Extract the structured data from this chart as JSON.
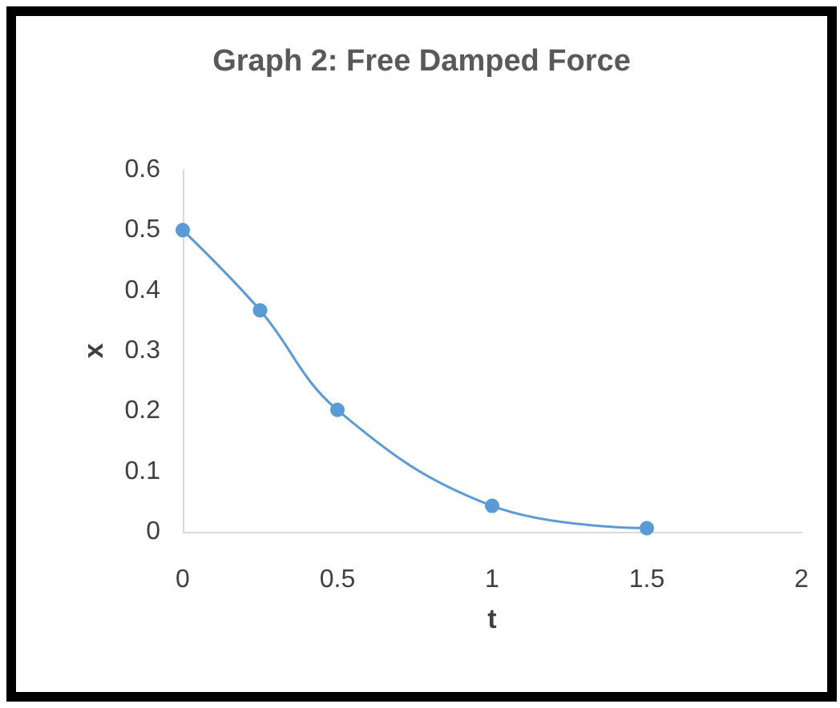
{
  "chart_data": {
    "type": "line",
    "title": "Graph 2: Free Damped Force",
    "xlabel": "t",
    "ylabel": "x",
    "x": [
      0,
      0.25,
      0.5,
      1,
      1.5
    ],
    "series": [
      {
        "color": "#5b9bd5",
        "values": [
          0.5,
          0.367,
          0.202,
          0.043,
          0.006
        ]
      }
    ],
    "xlim": [
      0,
      2
    ],
    "xticks": [
      0,
      0.5,
      1,
      1.5,
      2
    ],
    "ylim": [
      0,
      0.6
    ],
    "yticks": [
      0,
      0.1,
      0.2,
      0.3,
      0.4,
      0.5,
      0.6
    ],
    "grid": false,
    "marker": "circle",
    "line_style": "solid"
  }
}
